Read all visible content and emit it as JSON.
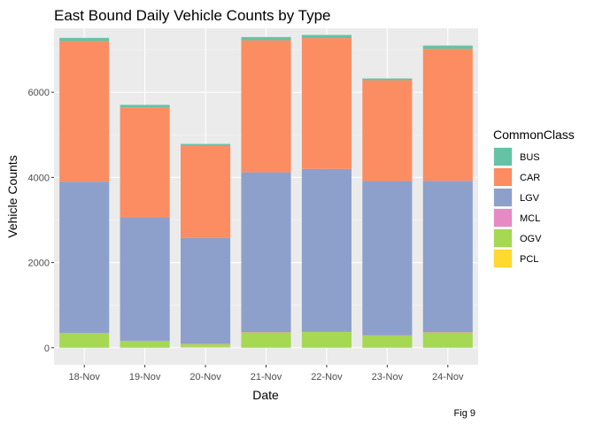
{
  "chart_data": {
    "type": "bar",
    "stacked": true,
    "title": "East Bound Daily Vehicle Counts by Type",
    "xlabel": "Date",
    "ylabel": "Vehicle Counts",
    "caption": "Fig 9",
    "categories": [
      "18-Nov",
      "19-Nov",
      "20-Nov",
      "21-Nov",
      "22-Nov",
      "23-Nov",
      "24-Nov"
    ],
    "ylim": [
      -400,
      7500
    ],
    "yticks": [
      0,
      2000,
      4000,
      6000
    ],
    "ytick_labels": [
      "0",
      "2000",
      "4000",
      "6000"
    ],
    "grid": true,
    "legend": {
      "title": "CommonClass",
      "position": "right"
    },
    "series": [
      {
        "name": "BUS",
        "color": "#66C2A5",
        "values": [
          75,
          60,
          40,
          75,
          75,
          40,
          75
        ]
      },
      {
        "name": "CAR",
        "color": "#FC8D62",
        "values": [
          3300,
          2580,
          2170,
          3100,
          3070,
          2370,
          3100
        ]
      },
      {
        "name": "LGV",
        "color": "#8DA0CB",
        "values": [
          3550,
          2900,
          2480,
          3750,
          3820,
          3620,
          3550
        ]
      },
      {
        "name": "MCL",
        "color": "#E78AC3",
        "values": [
          10,
          8,
          5,
          10,
          10,
          8,
          10
        ]
      },
      {
        "name": "OGV",
        "color": "#A6D854",
        "values": [
          340,
          155,
          70,
          360,
          370,
          285,
          360
        ]
      },
      {
        "name": "PCL",
        "color": "#FFD92F",
        "values": [
          0,
          0,
          20,
          0,
          0,
          0,
          0
        ]
      }
    ]
  }
}
